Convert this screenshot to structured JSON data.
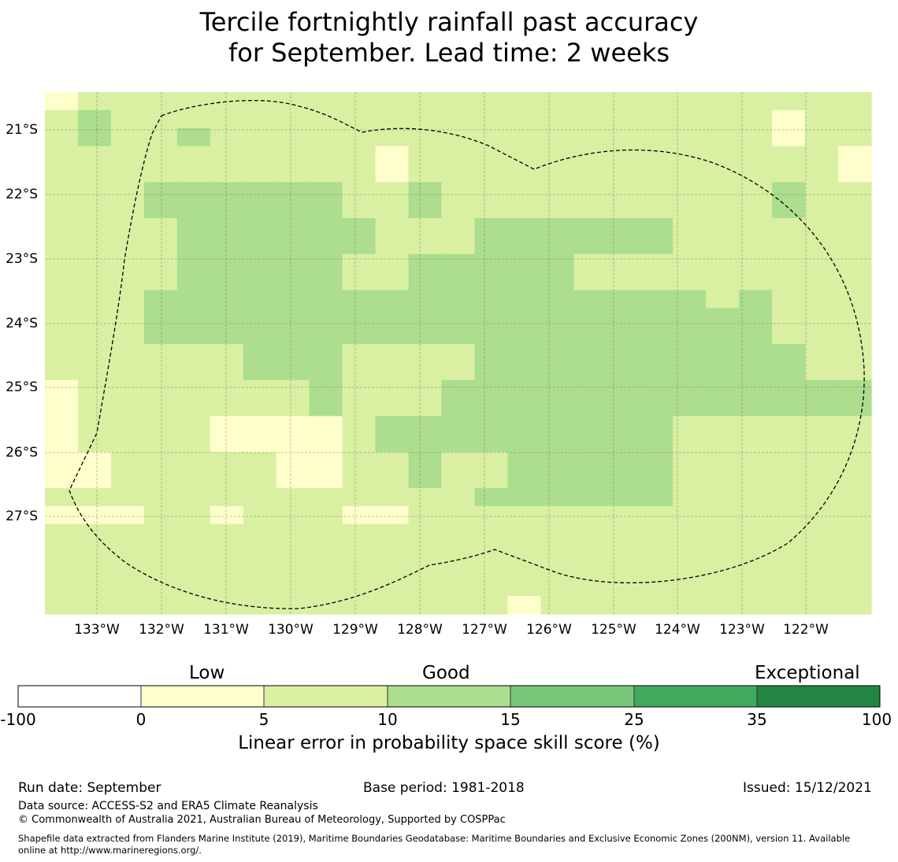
{
  "title": {
    "line1": "Tercile fortnightly rainfall past accuracy",
    "line2": "for September. Lead time: 2 weeks"
  },
  "map": {
    "lat_labels": [
      "21°S",
      "22°S",
      "23°S",
      "24°S",
      "25°S",
      "26°S",
      "27°S"
    ],
    "lon_labels": [
      "133°W",
      "132°W",
      "131°W",
      "130°W",
      "129°W",
      "128°W",
      "127°W",
      "126°W",
      "125°W",
      "124°W",
      "123°W",
      "122°W"
    ],
    "grid_codes": [
      "1222222222222222222222222",
      "2322222222222222222222122",
      "2322322222222222222222122",
      "2222222222122222222222221",
      "2222222222122222222222221",
      "2223333332232222222222322",
      "2223333332232222222222322",
      "2222333333222333333222222",
      "2222333333222333333222222",
      "2222333332233333222222222",
      "2222333332233333222222222",
      "2223333333333333333323222",
      "2223333333333333333333222",
      "2223333333333333333333222",
      "2222223332222333333333322",
      "2222223332222333333333322",
      "1222222232223333333333333",
      "1222222232223333333333333",
      "1222211112333333333222222",
      "1222211112333333333222222",
      "1122222112232233333222222",
      "1122222112232233333222222",
      "2222222222222333333222222",
      "1112212221122222222222222",
      "2222222222222222222222222",
      "2222222222222222222222222",
      "2222222222222222222222222",
      "2222222222222222222222222",
      "2222222222222212222222222"
    ],
    "boundary": "Exclusive Economic Zone (200NM)"
  },
  "colorbar": {
    "category_low": "Low",
    "category_good": "Good",
    "category_exceptional": "Exceptional",
    "ticks": [
      "-100",
      "0",
      "5",
      "10",
      "15",
      "25",
      "35",
      "100"
    ],
    "colors": [
      "#ffffff",
      "#ffffcc",
      "#d9f0a3",
      "#addd8e",
      "#78c679",
      "#41ab5d",
      "#238443"
    ],
    "label": "Linear error in probability space skill score (%)"
  },
  "footer": {
    "run_date": "Run date: September",
    "base_period": "Base period: 1981-2018",
    "issued": "Issued: 15/12/2021",
    "data_source": "Data source: ACCESS-S2 and ERA5 Climate Reanalysis",
    "copyright": "© Commonwealth of Australia 2021, Australian Bureau of Meteorology, Supported by COSPPac",
    "shapefile_line1": "Shapefile data extracted from Flanders Marine Institute (2019), Maritime Boundaries Geodatabase: Maritime Boundaries and Exclusive Economic Zones (200NM), version 11. Available",
    "shapefile_line2": "online at http://www.marineregions.org/."
  }
}
